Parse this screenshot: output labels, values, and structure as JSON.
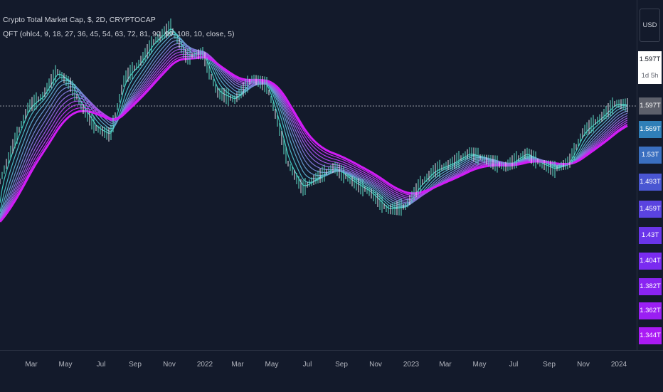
{
  "legend": {
    "title": "Crypto Total Market Cap, $, 2D, CRYPTOCAP",
    "indicator": "QFT (ohlc4, 9, 18, 27, 36, 45, 54, 63, 72, 81, 90, 99, 108, 10, close, 5)"
  },
  "currency_label": "USD",
  "last_price": {
    "value": "1.597T",
    "countdown": "1d 5h"
  },
  "price_tags": [
    {
      "label": "1.597T",
      "color": "#5d606b"
    },
    {
      "label": "1.569T",
      "color": "#2f7fb8"
    },
    {
      "label": "1.53T",
      "color": "#3a6fc0"
    },
    {
      "label": "1.493T",
      "color": "#4a56d2"
    },
    {
      "label": "1.459T",
      "color": "#5a43e0"
    },
    {
      "label": "1.43T",
      "color": "#6a35ea"
    },
    {
      "label": "1.404T",
      "color": "#7a2bf0"
    },
    {
      "label": "1.382T",
      "color": "#8a24f2"
    },
    {
      "label": "1.362T",
      "color": "#9a1ff3"
    },
    {
      "label": "1.344T",
      "color": "#aa1af4"
    }
  ],
  "time_labels": [
    "Mar",
    "May",
    "Jul",
    "Sep",
    "Nov",
    "2022",
    "Mar",
    "May",
    "Jul",
    "Sep",
    "Nov",
    "2023",
    "Mar",
    "May",
    "Jul",
    "Sep",
    "Nov",
    "2024"
  ],
  "colors": {
    "background": "#131a2b",
    "ribbon_fast": "#3fc8c0",
    "ribbon_slow": "#d11bf5",
    "candle_up": "#5fe0c8",
    "candle_down": "#e8e8f0"
  }
}
